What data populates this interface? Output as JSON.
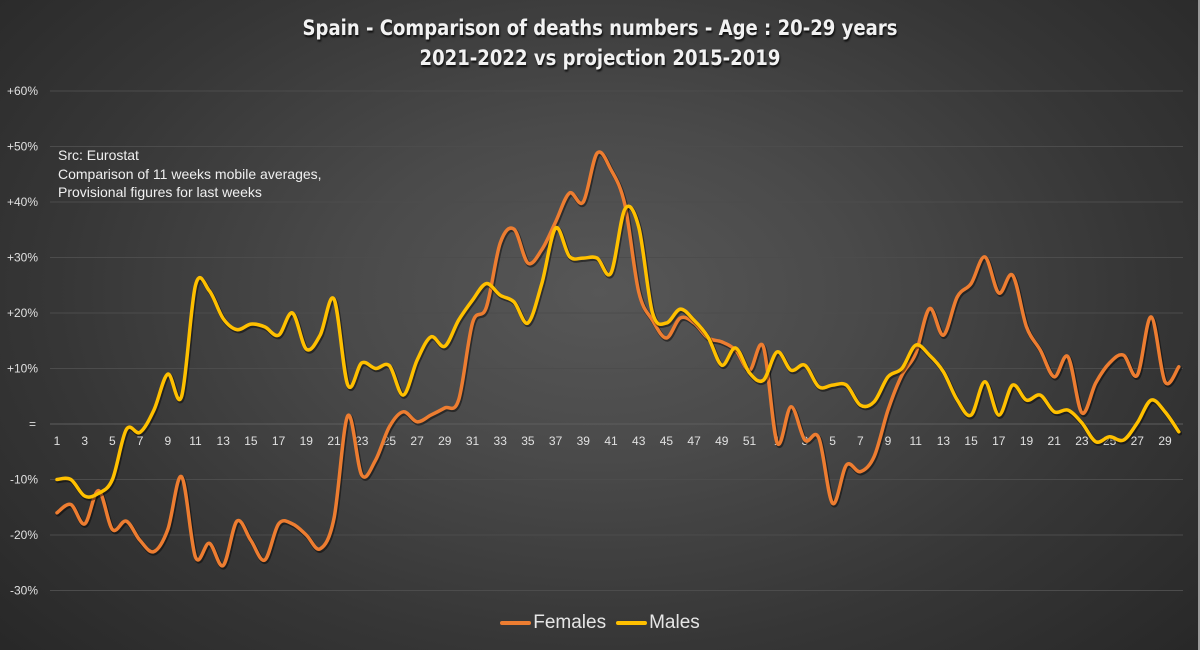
{
  "chart_data": {
    "type": "line",
    "title": "Spain - Comparison of deaths numbers - Age : 20-29 years",
    "subtitle": "2021-2022 vs projection 2015-2019",
    "annotation": [
      "Src: Eurostat",
      "Comparison of 11 weeks mobile averages,",
      "Provisional figures for last weeks"
    ],
    "xlabel": "",
    "ylabel": "",
    "ylim": [
      -30,
      60
    ],
    "y_ticks": [
      60,
      50,
      40,
      30,
      20,
      10,
      0,
      -10,
      -20,
      -30
    ],
    "y_tick_labels": [
      "+60%",
      "+50%",
      "+40%",
      "+30%",
      "+20%",
      "+10%",
      "=",
      "-10%",
      "-20%",
      "-30%"
    ],
    "grid": true,
    "legend_position": "bottom",
    "x": [
      "1",
      "2",
      "3",
      "4",
      "5",
      "6",
      "7",
      "8",
      "9",
      "10",
      "11",
      "12",
      "13",
      "14",
      "15",
      "16",
      "17",
      "18",
      "19",
      "20",
      "21",
      "22",
      "23",
      "24",
      "25",
      "26",
      "27",
      "28",
      "29",
      "30",
      "31",
      "32",
      "33",
      "34",
      "35",
      "36",
      "37",
      "38",
      "39",
      "40",
      "41",
      "42",
      "43",
      "44",
      "45",
      "46",
      "47",
      "48",
      "49",
      "50",
      "51",
      "52",
      "1",
      "2",
      "3",
      "4",
      "5",
      "6",
      "7",
      "8",
      "9",
      "10",
      "11",
      "12",
      "13",
      "14",
      "15",
      "16",
      "17",
      "18",
      "19",
      "20",
      "21",
      "22",
      "23",
      "24",
      "25",
      "26",
      "27",
      "28",
      "29",
      "30"
    ],
    "x_tick_labels": [
      "1",
      "3",
      "5",
      "7",
      "9",
      "11",
      "13",
      "15",
      "17",
      "19",
      "21",
      "23",
      "25",
      "27",
      "29",
      "31",
      "33",
      "35",
      "37",
      "39",
      "41",
      "43",
      "45",
      "47",
      "49",
      "51",
      "1",
      "3",
      "5",
      "7",
      "9",
      "11",
      "13",
      "15",
      "17",
      "19",
      "21",
      "23",
      "25",
      "27",
      "29"
    ],
    "series": [
      {
        "name": "Females",
        "color": "#ED7D31",
        "values": [
          -16,
          -14.5,
          -18,
          -12,
          -19,
          -17.5,
          -21,
          -23,
          -19,
          -9.5,
          -24,
          -21.5,
          -25.5,
          -17.5,
          -21,
          -24.5,
          -18,
          -18,
          -20,
          -22.5,
          -17,
          1.5,
          -9.2,
          -6.5,
          -0.5,
          2.2,
          0.4,
          1.6,
          2.9,
          4.3,
          18.2,
          21,
          32.6,
          35.1,
          29,
          31.4,
          36.4,
          41.6,
          40,
          48.8,
          45.8,
          39.5,
          23.8,
          18.7,
          15.5,
          19.1,
          18.2,
          15.5,
          14.8,
          13.3,
          9.7,
          13.9,
          -3.4,
          3.1,
          -2.9,
          -2.5,
          -14.3,
          -7.4,
          -8.6,
          -5.9,
          2.5,
          8.8,
          12.7,
          20.8,
          16,
          22.9,
          25.3,
          30.1,
          23.6,
          26.8,
          17.5,
          13.3,
          8.5,
          12.1,
          2,
          7.4,
          11,
          12.4,
          8.8,
          19.3,
          7.6,
          10.3
        ]
      },
      {
        "name": "Males",
        "color": "#FFC000",
        "values": [
          -10,
          -10,
          -13,
          -12.5,
          -10,
          -1,
          -1.5,
          2.5,
          9,
          5,
          25,
          24,
          19,
          17,
          18,
          17.5,
          16,
          20,
          13.5,
          16,
          22.5,
          7,
          11,
          10,
          10.5,
          5.2,
          11.5,
          15.7,
          14,
          18.7,
          22.3,
          25.3,
          23.2,
          22,
          18.2,
          25.3,
          35.3,
          30.2,
          29.9,
          29.9,
          27.2,
          38.7,
          35.5,
          20,
          18.2,
          20.7,
          18.7,
          15.7,
          10.6,
          13.7,
          9.2,
          7.9,
          13,
          9.7,
          10.6,
          6.7,
          7,
          7,
          3.4,
          4,
          8.5,
          10,
          14.2,
          12.4,
          9.4,
          4.3,
          1.6,
          7.6,
          1.6,
          7,
          4.3,
          5.2,
          2.2,
          2.5,
          0.2,
          -3.2,
          -2.3,
          -2.9,
          0.2,
          4.3,
          2.2,
          -1.4
        ]
      }
    ]
  }
}
